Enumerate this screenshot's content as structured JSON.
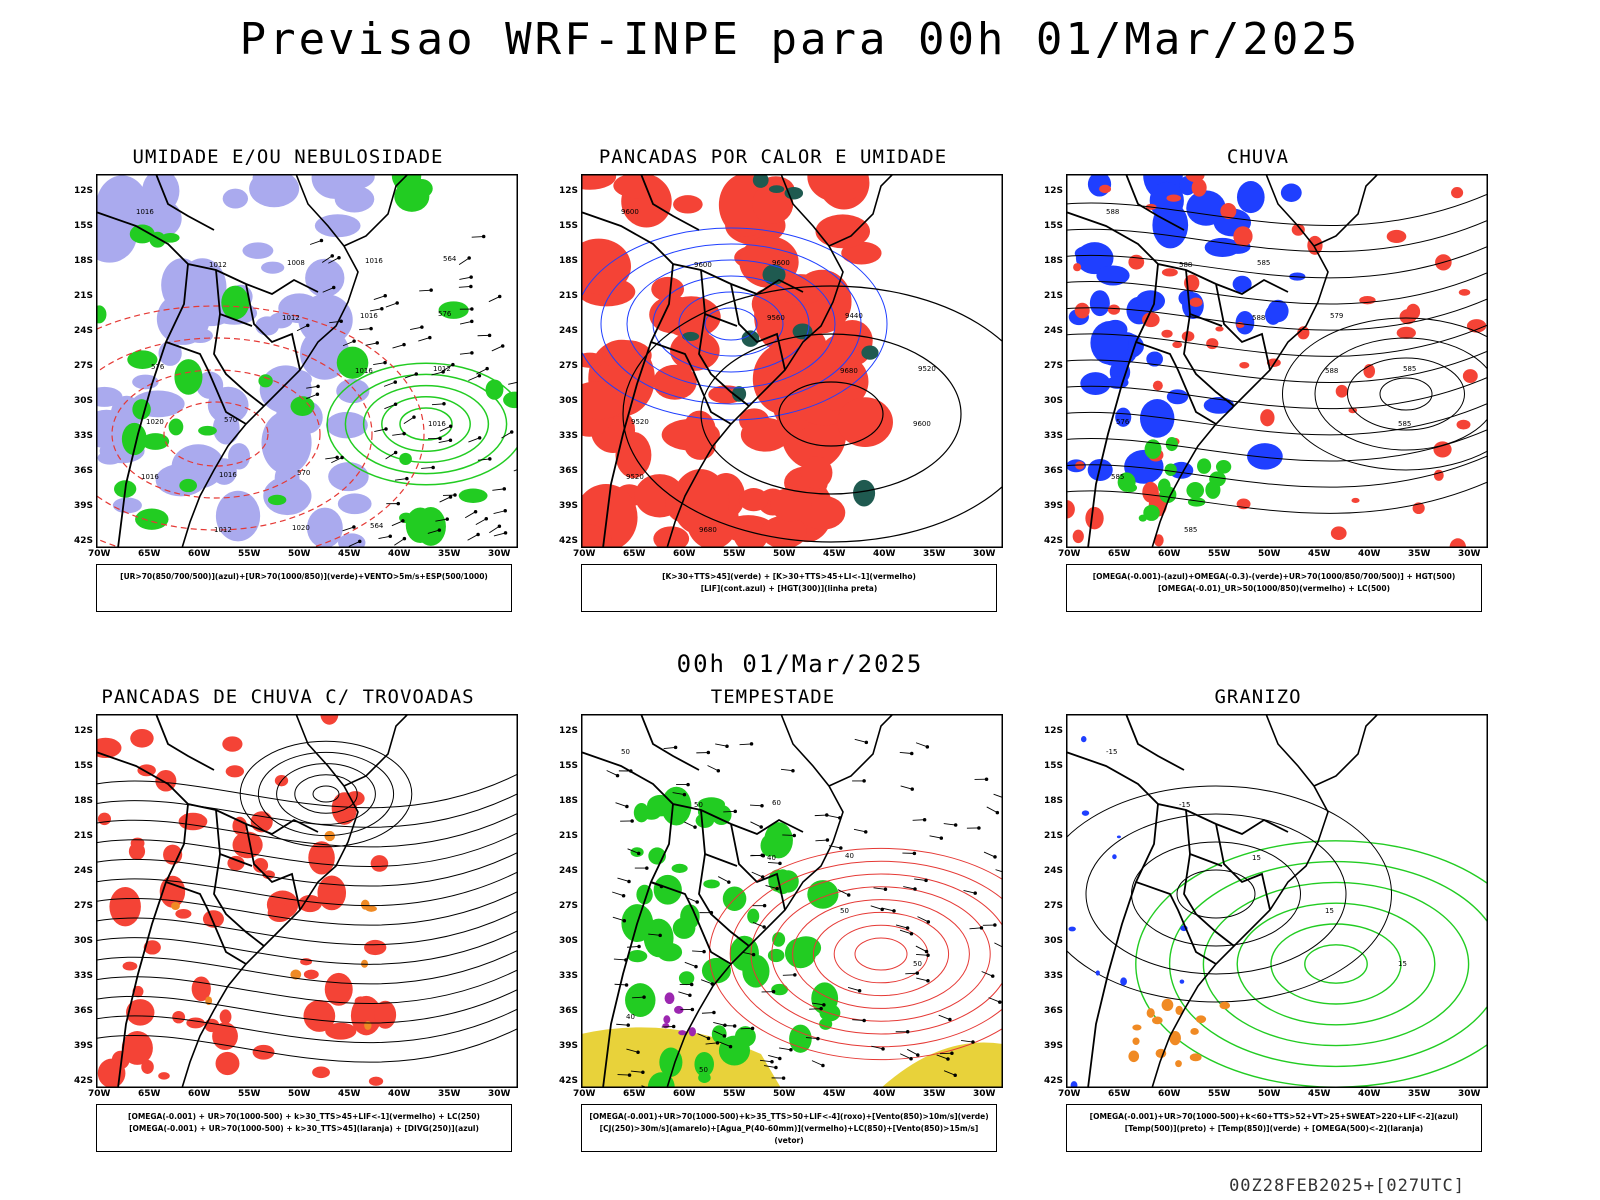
{
  "header": {
    "title": "Previsao WRF-INPE  para 00h 01/Mar/2025"
  },
  "middle": {
    "subtitle": "00h 01/Mar/2025"
  },
  "footer": {
    "run": "00Z28FEB2025+[027UTC]"
  },
  "axes": {
    "lat_labels": [
      "12S",
      "15S",
      "18S",
      "21S",
      "24S",
      "27S",
      "30S",
      "33S",
      "36S",
      "39S",
      "42S"
    ],
    "lon_labels": [
      "70W",
      "65W",
      "60W",
      "55W",
      "50W",
      "45W",
      "40W",
      "35W",
      "30W"
    ]
  },
  "colors": {
    "red": "#f44336",
    "green": "#22cc22",
    "blue": "#1f3fff",
    "lavender": "#aaaaee",
    "darkteal": "#1f5a50",
    "yellow": "#e8d23a",
    "orange": "#f08a24"
  },
  "panels": [
    {
      "title": "UMIDADE E/OU NEBULOSIDADE",
      "legend": [
        "[UR>70(850/700/500)](azul)+[UR>70(1000/850)](verde)+VENTO>5m/s+ESP(500/1000)"
      ],
      "labels": [
        "1016",
        "1012",
        "1012",
        "1016",
        "1016",
        "1016",
        "1012",
        "1008",
        "1016",
        "1012",
        "1020",
        "1016",
        "1020",
        "1016",
        "576",
        "576",
        "570",
        "570",
        "564",
        "564"
      ]
    },
    {
      "title": "PANCADAS POR CALOR E UMIDADE",
      "legend": [
        "[K>30+TTS>45](verde) + [K>30+TTS>45+LI<-1](vermelho)",
        "[LIF](cont.azul) + [HGT(300)](linha preta)"
      ],
      "labels": [
        "9600",
        "9600",
        "9560",
        "9680",
        "9600",
        "9520",
        "9680",
        "9600",
        "9440",
        "9520",
        "9520"
      ]
    },
    {
      "title": "CHUVA",
      "legend": [
        "[OMEGA(-0.001)-(azul)+OMEGA(-0.3)-(verde)+UR>70(1000/850/700/500)] + HGT(500)",
        "[OMEGA(-0.01)_UR>50(1000/850)(vermelho) + LC(500)"
      ],
      "labels": [
        "588",
        "588",
        "588",
        "588",
        "585",
        "585",
        "585",
        "585",
        "579",
        "585",
        "576"
      ]
    },
    {
      "title": "PANCADAS DE CHUVA C/ TROVOADAS",
      "legend": [
        "[OMEGA(-0.001) + UR>70(1000-500) + k>30_TTS>45+LIF<-1](vermelho) + LC(250)",
        "[OMEGA(-0.001) + UR>70(1000-500) + k>30_TTS>45](laranja) + [DIVG(250)](azul)"
      ],
      "labels": []
    },
    {
      "title": "TEMPESTADE",
      "legend": [
        "[OMEGA(-0.001)+UR>70(1000-500)+k>35_TTS>50+LIF<-4](roxo)+[Vento(850)>10m/s](verde)",
        "[CJ(250)>30m/s](amarelo)+[Agua_P(40-60mm)](vermelho)+LC(850)+[Vento(850)>15m/s](vetor)"
      ],
      "labels": [
        "50",
        "50",
        "40",
        "50",
        "50",
        "40",
        "50",
        "60",
        "40"
      ]
    },
    {
      "title": "GRANIZO",
      "legend": [
        "[OMEGA(-0.001)+UR>70(1000-500)+k<60+TTS>52+VT>25+SWEAT>220+LIF<-2](azul)",
        "[Temp(500)](preto) + [Temp(850)](verde) + [OMEGA(500)<-2](laranja)"
      ],
      "labels": [
        "-15",
        "-15",
        "15",
        "15",
        "15"
      ]
    }
  ]
}
